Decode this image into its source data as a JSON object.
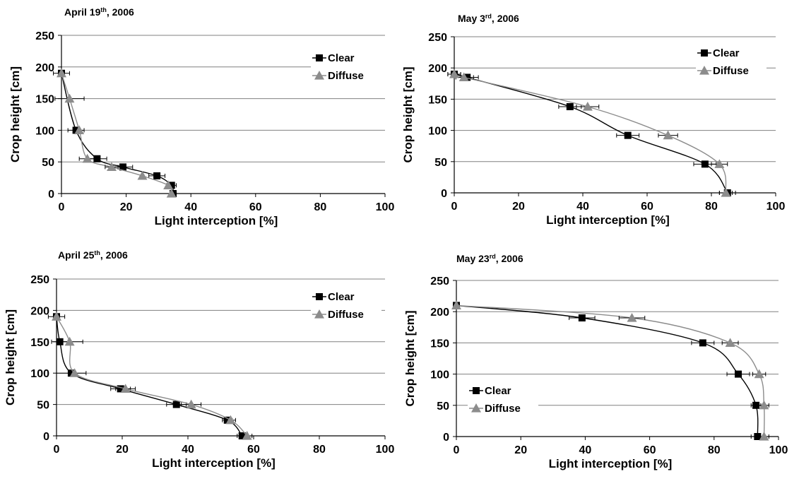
{
  "figure": {
    "background": "#ffffff"
  },
  "chart_data": [
    {
      "type": "line",
      "title": "April 19th, 2006",
      "title_main": "April 19",
      "title_sup": "th",
      "title_rest": ", 2006",
      "xlabel": "Light interception [%]",
      "ylabel": "Crop height [cm]",
      "xlim": [
        0,
        100
      ],
      "ylim": [
        0,
        250
      ],
      "xticks": [
        0,
        20,
        40,
        60,
        80,
        100
      ],
      "yticks": [
        0,
        50,
        100,
        150,
        200,
        250
      ],
      "grid": "horizontal",
      "legend_position": "top-right",
      "series": [
        {
          "name": "Clear",
          "marker": "square",
          "color": "#000000",
          "x": [
            0,
            4.5,
            11,
            19,
            29.5,
            34,
            34.5
          ],
          "y": [
            190,
            100,
            55,
            42,
            28,
            13,
            0
          ],
          "xerr": [
            2.5,
            2.5,
            3,
            3,
            2.5,
            1.5,
            1
          ]
        },
        {
          "name": "Diffuse",
          "marker": "triangle",
          "color": "#8c8c8c",
          "x": [
            0,
            2.5,
            5.5,
            8,
            15.5,
            25,
            33,
            34
          ],
          "y": [
            190,
            150,
            100,
            55,
            42,
            28,
            13,
            0
          ],
          "xerr": [
            0,
            4.5,
            0,
            2.5,
            2,
            0,
            0,
            0
          ]
        }
      ]
    },
    {
      "type": "line",
      "title": "May 3rd, 2006",
      "title_main": "May 3",
      "title_sup": "rd",
      "title_rest": ", 2006",
      "xlabel": "Light interception [%]",
      "ylabel": "Crop height [cm]",
      "xlim": [
        0,
        100
      ],
      "ylim": [
        0,
        250
      ],
      "xticks": [
        0,
        20,
        40,
        60,
        80,
        100
      ],
      "yticks": [
        0,
        50,
        100,
        150,
        200,
        250
      ],
      "grid": "horizontal",
      "legend_position": "top-right",
      "series": [
        {
          "name": "Clear",
          "marker": "square",
          "color": "#000000",
          "x": [
            0,
            4,
            36,
            54,
            78,
            85
          ],
          "y": [
            190,
            185,
            138,
            92,
            46,
            0
          ],
          "xerr": [
            2,
            3.5,
            3.5,
            3.5,
            3.5,
            2.5
          ]
        },
        {
          "name": "Diffuse",
          "marker": "triangle",
          "color": "#8c8c8c",
          "x": [
            0,
            3,
            41.5,
            66.5,
            82.5,
            84.5
          ],
          "y": [
            190,
            185,
            138,
            92,
            46,
            0
          ],
          "xerr": [
            2,
            3,
            3.5,
            3,
            2.5,
            2
          ]
        }
      ]
    },
    {
      "type": "line",
      "title": "April 25th, 2006",
      "title_main": "April 25",
      "title_sup": "th",
      "title_rest": ", 2006",
      "xlabel": "Light interception [%]",
      "ylabel": "Crop height [cm]",
      "xlim": [
        0,
        100
      ],
      "ylim": [
        0,
        250
      ],
      "xticks": [
        0,
        20,
        40,
        60,
        80,
        100
      ],
      "yticks": [
        0,
        50,
        100,
        150,
        200,
        250
      ],
      "grid": "horizontal",
      "legend_position": "top-right",
      "series": [
        {
          "name": "Clear",
          "marker": "square",
          "color": "#000000",
          "x": [
            0,
            1,
            4.5,
            19.5,
            36.5,
            52,
            56.5
          ],
          "y": [
            190,
            150,
            100,
            75,
            50,
            25,
            0
          ],
          "xerr": [
            2.5,
            2.5,
            4.5,
            3,
            3,
            1.5,
            1.5
          ]
        },
        {
          "name": "Diffuse",
          "marker": "triangle",
          "color": "#8c8c8c",
          "x": [
            0,
            4,
            5.5,
            21,
            41,
            53,
            58
          ],
          "y": [
            190,
            150,
            100,
            75,
            50,
            25,
            0
          ],
          "xerr": [
            0,
            4,
            0,
            3,
            3,
            1.5,
            1.5
          ]
        }
      ]
    },
    {
      "type": "line",
      "title": "May 23rd, 2006",
      "title_main": "May 23",
      "title_sup": "rd",
      "title_rest": ", 2006",
      "xlabel": "Light interception [%]",
      "ylabel": "Crop height [cm]",
      "xlim": [
        0,
        100
      ],
      "ylim": [
        0,
        250
      ],
      "xticks": [
        0,
        20,
        40,
        60,
        80,
        100
      ],
      "yticks": [
        0,
        50,
        100,
        150,
        200,
        250
      ],
      "grid": "horizontal",
      "legend_position": "bottom-left",
      "series": [
        {
          "name": "Clear",
          "marker": "square",
          "color": "#000000",
          "x": [
            0,
            39,
            76.5,
            87.5,
            93,
            93.5
          ],
          "y": [
            210,
            190,
            150,
            100,
            50,
            0
          ],
          "xerr": [
            0,
            4,
            3.5,
            3.5,
            1.5,
            2
          ]
        },
        {
          "name": "Diffuse",
          "marker": "triangle",
          "color": "#8c8c8c",
          "x": [
            0,
            54.5,
            85,
            94,
            95.5,
            95.5
          ],
          "y": [
            210,
            190,
            150,
            100,
            50,
            0
          ],
          "xerr": [
            0,
            4,
            2.5,
            2,
            1.5,
            1.5
          ]
        }
      ]
    }
  ]
}
